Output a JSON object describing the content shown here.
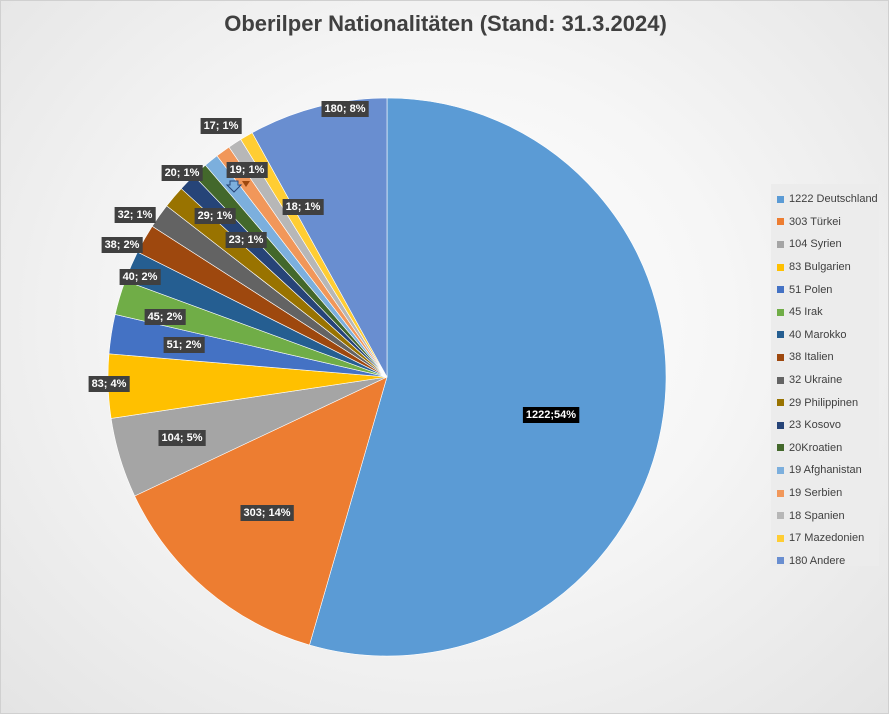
{
  "title": "Oberilper Nationalitäten (Stand: 31.3.2024)",
  "chart_data": {
    "type": "pie",
    "title": "Oberilper Nationalitäten (Stand: 31.3.2024)",
    "legend_position": "right",
    "slices": [
      {
        "legend": "1222 Deutschland",
        "value": 1222,
        "label": "1222;54%",
        "color": "#5B9BD5"
      },
      {
        "legend": "303 Türkei",
        "value": 303,
        "label": "303; 14%",
        "color": "#ED7D31"
      },
      {
        "legend": "104 Syrien",
        "value": 104,
        "label": "104; 5%",
        "color": "#A5A5A5"
      },
      {
        "legend": "83 Bulgarien",
        "value": 83,
        "label": "83; 4%",
        "color": "#FFC000"
      },
      {
        "legend": "51 Polen",
        "value": 51,
        "label": "51; 2%",
        "color": "#4472C4"
      },
      {
        "legend": "45 Irak",
        "value": 45,
        "label": "45; 2%",
        "color": "#70AD47"
      },
      {
        "legend": "40 Marokko",
        "value": 40,
        "label": "40; 2%",
        "color": "#255E91"
      },
      {
        "legend": "38 Italien",
        "value": 38,
        "label": "38; 2%",
        "color": "#9E480E"
      },
      {
        "legend": "32 Ukraine",
        "value": 32,
        "label": "32; 1%",
        "color": "#636363"
      },
      {
        "legend": "29 Philippinen",
        "value": 29,
        "label": "29; 1%",
        "color": "#997300"
      },
      {
        "legend": "23 Kosovo",
        "value": 23,
        "label": "23; 1%",
        "color": "#264478"
      },
      {
        "legend": "20Kroatien",
        "value": 20,
        "label": "20; 1%",
        "color": "#43682B"
      },
      {
        "legend": "19 Afghanistan",
        "value": 19,
        "label": "19; 1%",
        "color": "#7CAFDD"
      },
      {
        "legend": "19 Serbien",
        "value": 19,
        "label": "19; 1%",
        "color": "#F1975A"
      },
      {
        "legend": "18 Spanien",
        "value": 18,
        "label": "18; 1%",
        "color": "#B7B7B7"
      },
      {
        "legend": "17 Mazedonien",
        "value": 17,
        "label": "17; 1%",
        "color": "#FFCD33"
      },
      {
        "legend": "180 Andere",
        "value": 180,
        "label": "180; 8%",
        "color": "#698ED0"
      }
    ]
  }
}
